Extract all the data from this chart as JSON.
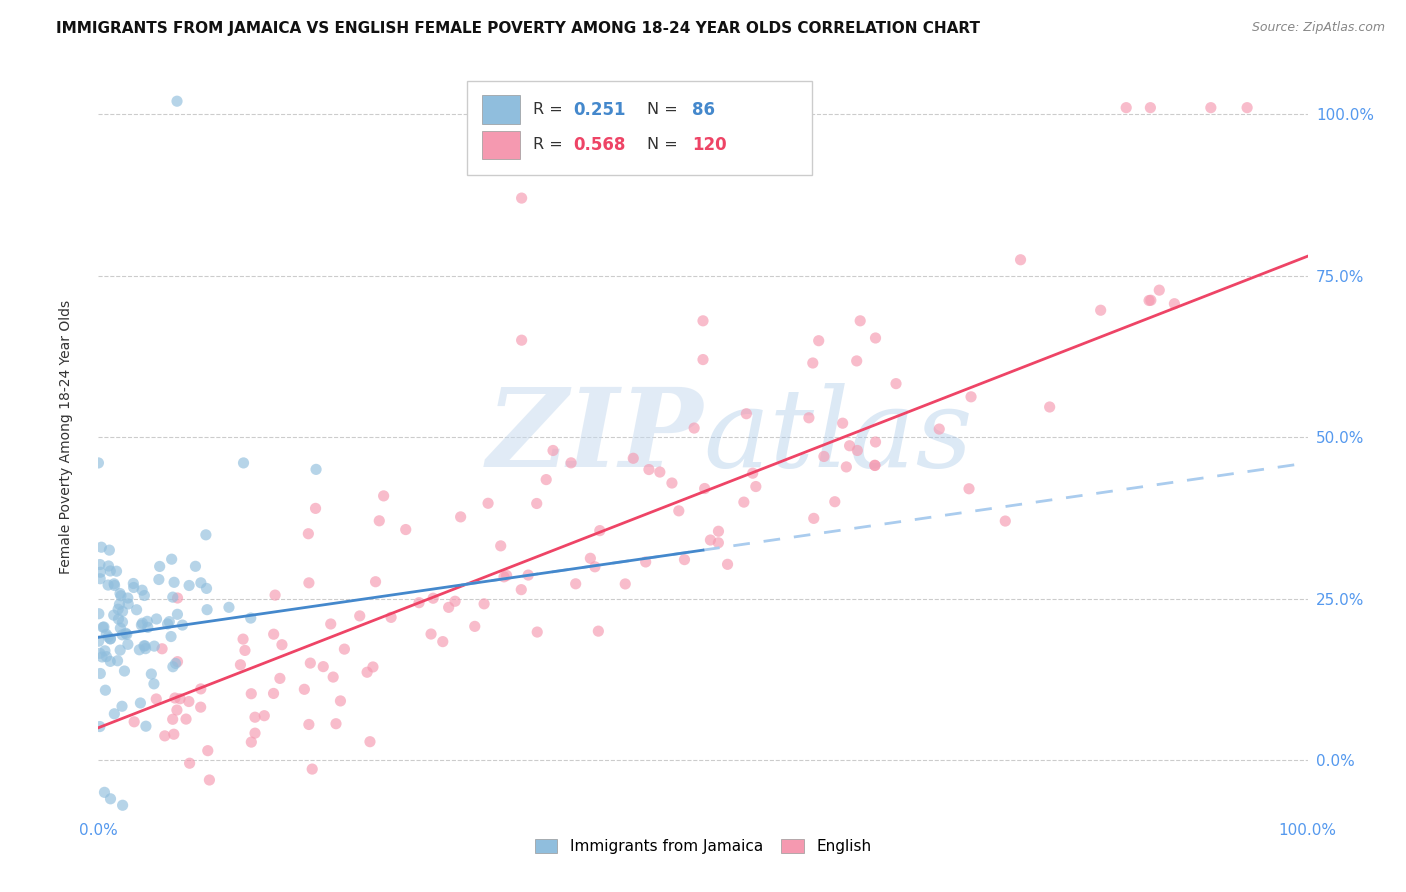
{
  "title": "IMMIGRANTS FROM JAMAICA VS ENGLISH FEMALE POVERTY AMONG 18-24 YEAR OLDS CORRELATION CHART",
  "source": "Source: ZipAtlas.com",
  "ylabel": "Female Poverty Among 18-24 Year Olds",
  "xlim": [
    0,
    1
  ],
  "ylim": [
    -0.08,
    1.08
  ],
  "x_tick_labels": [
    "0.0%",
    "100.0%"
  ],
  "y_tick_labels": [
    "0.0%",
    "25.0%",
    "50.0%",
    "75.0%",
    "100.0%"
  ],
  "y_tick_vals": [
    0.0,
    0.25,
    0.5,
    0.75,
    1.0
  ],
  "blue_color": "#90bedd",
  "pink_color": "#f599b0",
  "blue_line_color": "#4488cc",
  "pink_line_color": "#ee4466",
  "blue_n": 86,
  "pink_n": 120,
  "blue_R": "0.251",
  "pink_R": "0.568",
  "blue_N_str": "86",
  "pink_N_str": "120",
  "background_color": "#ffffff",
  "grid_color": "#cccccc",
  "title_fontsize": 11,
  "tick_label_color": "#5599ee",
  "watermark_color": "#c5d9ee",
  "legend_label_blue": "Immigrants from Jamaica",
  "legend_label_pink": "English"
}
